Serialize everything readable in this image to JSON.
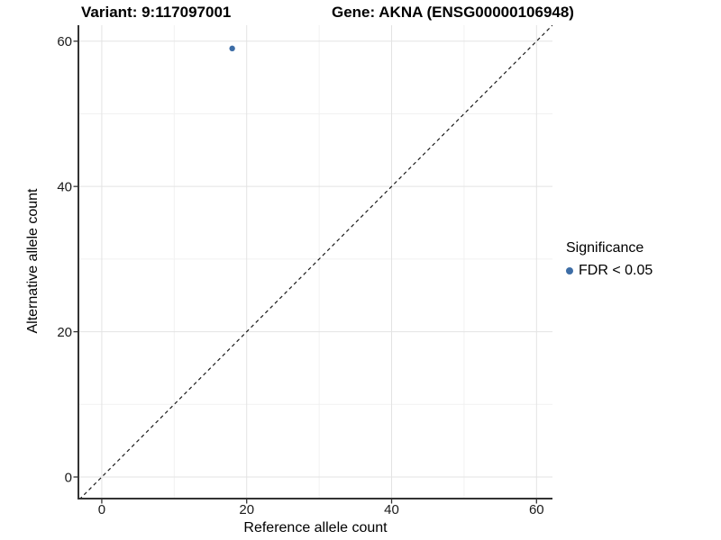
{
  "titles": {
    "left": "Variant: 9:117097001",
    "right": "Gene: AKNA (ENSG00000106948)"
  },
  "chart_data": {
    "type": "scatter",
    "points": [
      {
        "x": 18,
        "y": 59,
        "series": "FDR < 0.05"
      }
    ],
    "xlabel": "Reference allele count",
    "ylabel": "Alternative allele count",
    "xlim": [
      -3.1,
      62.2
    ],
    "ylim": [
      -2.85,
      62.2
    ],
    "xticks": [
      0,
      20,
      40,
      60
    ],
    "yticks": [
      0,
      20,
      40,
      60
    ],
    "xticks_minor": [
      10,
      30,
      50
    ],
    "yticks_minor": [
      10,
      30,
      50
    ],
    "grid": true,
    "identity_line": {
      "style": "dashed",
      "from": -3.1,
      "to": 62.3
    },
    "point_color": "#3d6da6",
    "legend": {
      "title": "Significance",
      "position": "right",
      "items": [
        {
          "label": "FDR < 0.05",
          "color": "#3d6da6"
        }
      ]
    },
    "colors": {
      "grid_major": "#e3e3e3",
      "grid_minor": "#f1f1f1",
      "axis_line": "#333333",
      "tick_mark": "#333333",
      "tick_label": "#1a1a1a",
      "dash_line": "#1a1a1a",
      "background": "#ffffff"
    }
  }
}
